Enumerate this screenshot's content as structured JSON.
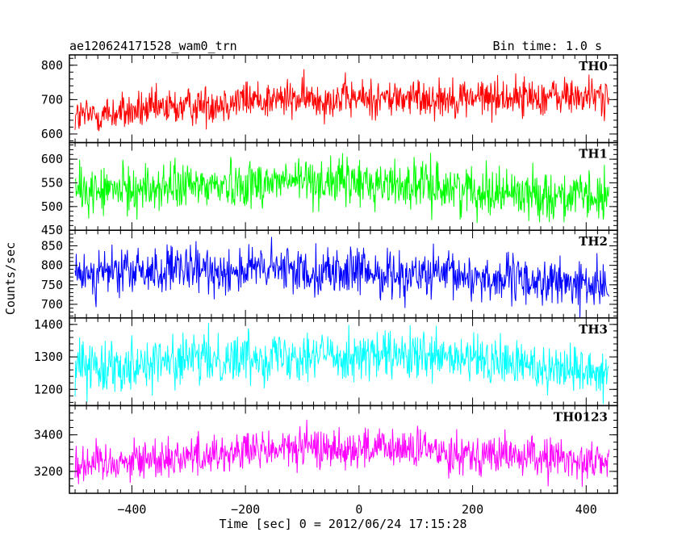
{
  "header": {
    "title": "ae120624171528_wam0_trn",
    "bin_time": "Bin time: 1.0 s"
  },
  "chart_data": {
    "type": "line",
    "x_range": [
      -510,
      455
    ],
    "xlabel": "Time [sec] 0 = 2012/06/24 17:15:28",
    "ylabel": "Counts/sec",
    "x_ticks": [
      -400,
      -200,
      0,
      200,
      400
    ],
    "x_range_data": [
      -500,
      440
    ],
    "bin_time_s": 1.0,
    "panels": [
      {
        "name": "TH0",
        "color": "#ff0000",
        "ylim": [
          575,
          830
        ],
        "y_ticks": [
          600,
          700,
          800
        ],
        "trend": [
          [
            -500,
            650
          ],
          [
            -300,
            680
          ],
          [
            -200,
            700
          ],
          [
            440,
            710
          ]
        ],
        "noise": 28
      },
      {
        "name": "TH1",
        "color": "#00ff00",
        "ylim": [
          450,
          635
        ],
        "y_ticks": [
          450,
          500,
          550,
          600
        ],
        "trend": [
          [
            -500,
            530
          ],
          [
            -100,
            555
          ],
          [
            100,
            545
          ],
          [
            440,
            515
          ]
        ],
        "noise": 25
      },
      {
        "name": "TH2",
        "color": "#0000ff",
        "ylim": [
          665,
          890
        ],
        "y_ticks": [
          700,
          750,
          800,
          850
        ],
        "trend": [
          [
            -500,
            780
          ],
          [
            -150,
            790
          ],
          [
            200,
            770
          ],
          [
            440,
            745
          ]
        ],
        "noise": 30
      },
      {
        "name": "TH3",
        "color": "#00ffff",
        "ylim": [
          1150,
          1420
        ],
        "y_ticks": [
          1200,
          1300,
          1400
        ],
        "trend": [
          [
            -500,
            1270
          ],
          [
            -100,
            1310
          ],
          [
            200,
            1290
          ],
          [
            440,
            1255
          ]
        ],
        "noise": 38
      },
      {
        "name": "TH0123",
        "color": "#ff00ff",
        "ylim": [
          3080,
          3560
        ],
        "y_ticks": [
          3200,
          3400
        ],
        "trend": [
          [
            -500,
            3240
          ],
          [
            -100,
            3330
          ],
          [
            100,
            3320
          ],
          [
            440,
            3250
          ]
        ],
        "noise": 55
      }
    ]
  }
}
